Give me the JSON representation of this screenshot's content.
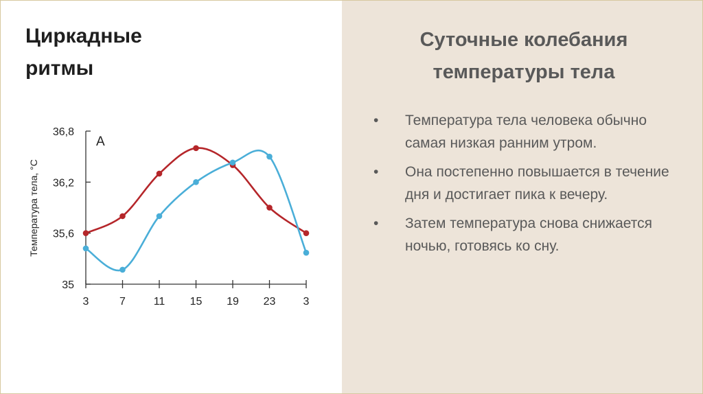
{
  "left_title": "Циркадные ритмы",
  "right_title": "Суточные колебания температуры тела",
  "bullets": [
    "Температура тела человека обычно самая низкая ранним утром.",
    "Она постепенно повышается в течение дня и достигает пика к вечеру.",
    "Затем температура снова снижается ночью, готовясь ко сну."
  ],
  "chart_data": {
    "type": "line",
    "panel_label": "А",
    "ylabel": "Температура тела, °С",
    "xlabel": "",
    "categories": [
      "3",
      "7",
      "11",
      "15",
      "19",
      "23",
      "3"
    ],
    "ylim": [
      35,
      36.8
    ],
    "yticks": [
      "35",
      "35,6",
      "36,2",
      "36,8"
    ],
    "ytick_values": [
      35,
      35.6,
      36.2,
      36.8
    ],
    "grid": false,
    "series": [
      {
        "color": "#b5262a",
        "values": [
          35.6,
          35.8,
          36.3,
          36.6,
          36.4,
          35.9,
          35.6
        ]
      },
      {
        "color": "#4aaed8",
        "values": [
          35.42,
          35.17,
          35.8,
          36.2,
          36.43,
          36.5,
          35.37
        ]
      }
    ]
  }
}
